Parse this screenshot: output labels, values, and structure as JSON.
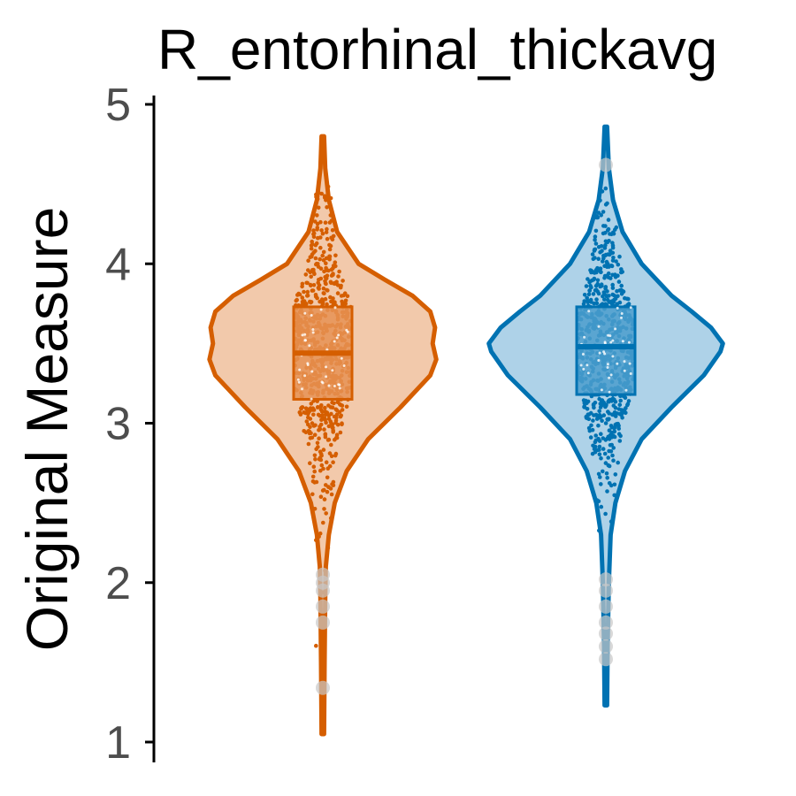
{
  "chart_data": {
    "type": "violin",
    "title": "R_entorhinal_thickavg",
    "xlabel": "",
    "ylabel": "Original Measure",
    "ylim": [
      1,
      5
    ],
    "yticks": [
      1,
      2,
      3,
      4,
      5
    ],
    "grid": false,
    "legend": "none",
    "series": [
      {
        "color": "#D55E00",
        "fill": "#F2C9AB",
        "box_fill": "#E69253",
        "min": 1.05,
        "max": 4.8,
        "q1": 3.15,
        "median": 3.44,
        "q3": 3.73,
        "density": [
          [
            1.05,
            0.01
          ],
          [
            1.5,
            0.015
          ],
          [
            1.9,
            0.02
          ],
          [
            2.1,
            0.025
          ],
          [
            2.3,
            0.05
          ],
          [
            2.5,
            0.1
          ],
          [
            2.7,
            0.2
          ],
          [
            2.9,
            0.38
          ],
          [
            3.1,
            0.65
          ],
          [
            3.3,
            0.9
          ],
          [
            3.4,
            0.95
          ],
          [
            3.5,
            0.92
          ],
          [
            3.6,
            0.94
          ],
          [
            3.7,
            0.9
          ],
          [
            3.8,
            0.75
          ],
          [
            3.9,
            0.52
          ],
          [
            4.0,
            0.3
          ],
          [
            4.2,
            0.12
          ],
          [
            4.4,
            0.05
          ],
          [
            4.6,
            0.02
          ],
          [
            4.8,
            0.01
          ]
        ],
        "outliers": [
          1.34,
          1.75,
          1.85,
          1.95,
          2.0,
          2.05
        ]
      },
      {
        "color": "#0072B2",
        "fill": "#AED2E8",
        "box_fill": "#4B9ECD",
        "min": 1.23,
        "max": 4.86,
        "q1": 3.18,
        "median": 3.48,
        "q3": 3.73,
        "density": [
          [
            1.23,
            0.01
          ],
          [
            1.6,
            0.015
          ],
          [
            2.0,
            0.025
          ],
          [
            2.3,
            0.04
          ],
          [
            2.5,
            0.08
          ],
          [
            2.7,
            0.16
          ],
          [
            2.9,
            0.3
          ],
          [
            3.1,
            0.55
          ],
          [
            3.3,
            0.82
          ],
          [
            3.45,
            0.96
          ],
          [
            3.5,
            0.98
          ],
          [
            3.6,
            0.88
          ],
          [
            3.7,
            0.72
          ],
          [
            3.8,
            0.55
          ],
          [
            4.0,
            0.3
          ],
          [
            4.2,
            0.14
          ],
          [
            4.4,
            0.06
          ],
          [
            4.6,
            0.025
          ],
          [
            4.86,
            0.01
          ]
        ],
        "outliers": [
          1.52,
          1.6,
          1.68,
          1.75,
          1.85,
          1.95,
          2.02,
          4.62
        ]
      }
    ]
  }
}
